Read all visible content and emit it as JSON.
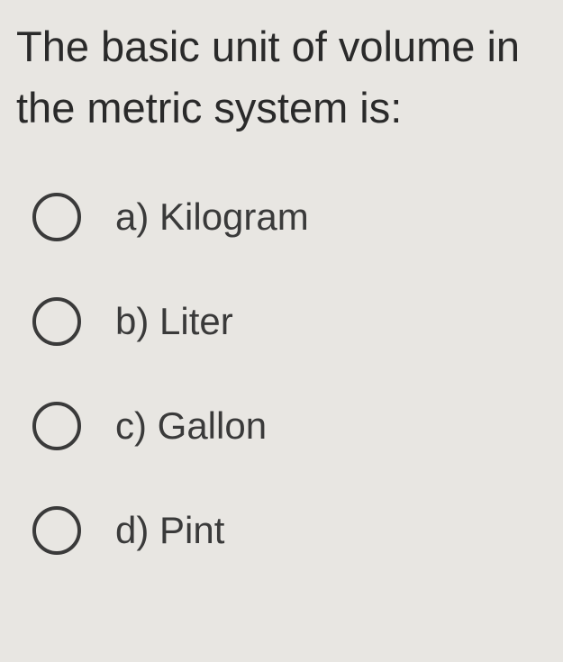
{
  "question": {
    "text": "The basic unit of volume in the metric system is:",
    "text_color": "#2a2a2a",
    "fontsize": 47
  },
  "options": [
    {
      "letter": "a",
      "label": "Kilogram",
      "selected": false
    },
    {
      "letter": "b",
      "label": "Liter",
      "selected": false
    },
    {
      "letter": "c",
      "label": "Gallon",
      "selected": false
    },
    {
      "letter": "d",
      "label": "Pint",
      "selected": false
    }
  ],
  "styling": {
    "background_color": "#e8e6e2",
    "radio_border_color": "#3a3a3a",
    "radio_size": 54,
    "radio_border_width": 4,
    "option_fontsize": 42,
    "option_text_color": "#3a3a3a",
    "option_spacing": 62
  }
}
